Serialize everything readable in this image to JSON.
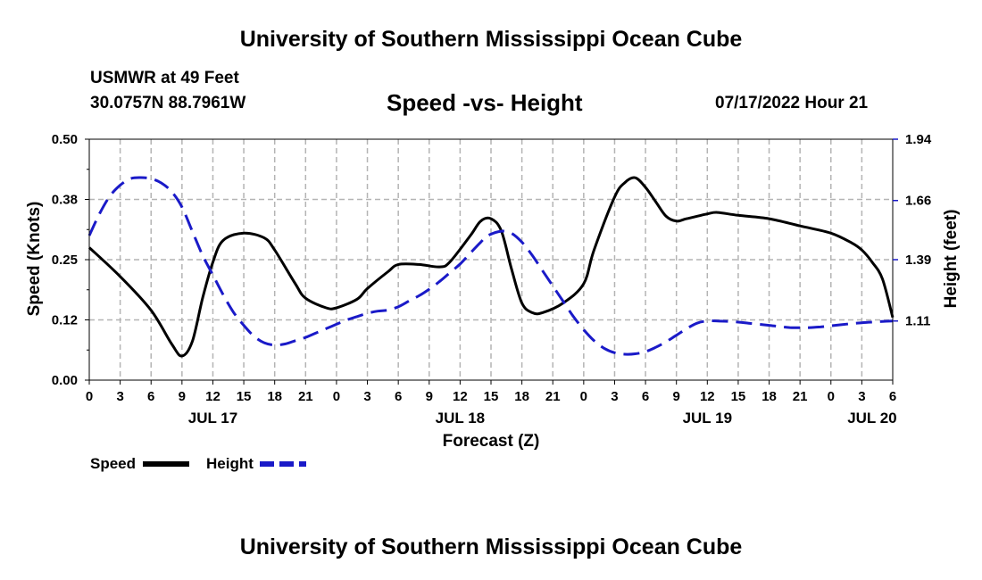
{
  "header": {
    "title": "University of Southern Mississippi Ocean Cube",
    "station": "USMWR at 49 Feet",
    "coords": "30.0757N  88.7961W",
    "subtitle": "Speed -vs- Height",
    "datetime": "07/17/2022 Hour 21"
  },
  "footer": {
    "title": "University of Southern Mississippi Ocean Cube"
  },
  "chart_data": {
    "type": "line",
    "title": "Speed -vs- Height",
    "xlabel": "Forecast (Z)",
    "ylabel": "Speed (Knots)",
    "y2label": "Height (feet)",
    "xlim": [
      0,
      78
    ],
    "ylim": [
      0,
      0.5
    ],
    "y2lim": [
      0.84,
      1.94
    ],
    "x_ticks": [
      0,
      3,
      6,
      9,
      12,
      15,
      18,
      21,
      24,
      27,
      30,
      33,
      36,
      39,
      42,
      45,
      48,
      51,
      54,
      57,
      60,
      63,
      66,
      69,
      72,
      75,
      78
    ],
    "x_tick_labels": [
      "0",
      "3",
      "6",
      "9",
      "12",
      "15",
      "18",
      "21",
      "0",
      "3",
      "6",
      "9",
      "12",
      "15",
      "18",
      "21",
      "0",
      "3",
      "6",
      "9",
      "12",
      "15",
      "18",
      "21",
      "0",
      "3",
      "6"
    ],
    "date_labels": [
      {
        "x": 12,
        "label": "JUL 17"
      },
      {
        "x": 36,
        "label": "JUL 18"
      },
      {
        "x": 60,
        "label": "JUL 19"
      },
      {
        "x": 76,
        "label": "JUL 20"
      }
    ],
    "y_ticks": [
      0.0,
      0.125,
      0.25,
      0.375,
      0.5
    ],
    "y_tick_labels": [
      "0.00",
      "0.12",
      "0.25",
      "0.38",
      "0.50"
    ],
    "y2_ticks": [
      1.11,
      1.39,
      1.66,
      1.94
    ],
    "y2_tick_labels": [
      "1.11",
      "1.39",
      "1.66",
      "1.94"
    ],
    "grid": true,
    "legend_position": "bottom-left",
    "series": [
      {
        "name": "Speed",
        "axis": "left",
        "color": "#000000",
        "dash": "solid",
        "points": [
          [
            0,
            0.275
          ],
          [
            3,
            0.215
          ],
          [
            6,
            0.145
          ],
          [
            8,
            0.075
          ],
          [
            9,
            0.05
          ],
          [
            10,
            0.08
          ],
          [
            11,
            0.17
          ],
          [
            12,
            0.245
          ],
          [
            13,
            0.29
          ],
          [
            15,
            0.305
          ],
          [
            17,
            0.295
          ],
          [
            18,
            0.27
          ],
          [
            20,
            0.2
          ],
          [
            21,
            0.17
          ],
          [
            23,
            0.15
          ],
          [
            24,
            0.15
          ],
          [
            26,
            0.168
          ],
          [
            27,
            0.19
          ],
          [
            29,
            0.225
          ],
          [
            30,
            0.24
          ],
          [
            32,
            0.24
          ],
          [
            34,
            0.235
          ],
          [
            35,
            0.245
          ],
          [
            37,
            0.3
          ],
          [
            38,
            0.33
          ],
          [
            39,
            0.335
          ],
          [
            40,
            0.31
          ],
          [
            41,
            0.23
          ],
          [
            42,
            0.16
          ],
          [
            43,
            0.14
          ],
          [
            44,
            0.14
          ],
          [
            46,
            0.16
          ],
          [
            48,
            0.2
          ],
          [
            49,
            0.27
          ],
          [
            51,
            0.38
          ],
          [
            52,
            0.41
          ],
          [
            53,
            0.42
          ],
          [
            54,
            0.4
          ],
          [
            55,
            0.37
          ],
          [
            56,
            0.34
          ],
          [
            57,
            0.33
          ],
          [
            58,
            0.335
          ],
          [
            60,
            0.345
          ],
          [
            61,
            0.348
          ],
          [
            63,
            0.342
          ],
          [
            66,
            0.335
          ],
          [
            69,
            0.32
          ],
          [
            72,
            0.305
          ],
          [
            74,
            0.285
          ],
          [
            75,
            0.27
          ],
          [
            76,
            0.245
          ],
          [
            77,
            0.21
          ],
          [
            78,
            0.13
          ]
        ]
      },
      {
        "name": "Height",
        "axis": "right",
        "color": "#1a1ac8",
        "dash": "dashed",
        "points": [
          [
            0,
            1.5
          ],
          [
            1,
            1.6
          ],
          [
            2,
            1.68
          ],
          [
            3,
            1.73
          ],
          [
            4,
            1.76
          ],
          [
            5,
            1.765
          ],
          [
            6,
            1.76
          ],
          [
            7,
            1.74
          ],
          [
            8,
            1.7
          ],
          [
            9,
            1.63
          ],
          [
            10,
            1.52
          ],
          [
            11,
            1.41
          ],
          [
            12,
            1.32
          ],
          [
            13,
            1.23
          ],
          [
            14,
            1.15
          ],
          [
            15,
            1.09
          ],
          [
            16,
            1.04
          ],
          [
            17,
            1.01
          ],
          [
            18,
            1.0
          ],
          [
            19,
            1.005
          ],
          [
            20,
            1.02
          ],
          [
            21,
            1.035
          ],
          [
            22,
            1.055
          ],
          [
            23,
            1.075
          ],
          [
            24,
            1.095
          ],
          [
            25,
            1.115
          ],
          [
            26,
            1.13
          ],
          [
            27,
            1.145
          ],
          [
            28,
            1.155
          ],
          [
            29,
            1.16
          ],
          [
            30,
            1.175
          ],
          [
            31,
            1.2
          ],
          [
            32,
            1.225
          ],
          [
            33,
            1.255
          ],
          [
            34,
            1.29
          ],
          [
            35,
            1.33
          ],
          [
            36,
            1.37
          ],
          [
            37,
            1.42
          ],
          [
            38,
            1.47
          ],
          [
            38.7,
            1.5
          ],
          [
            40,
            1.52
          ],
          [
            41,
            1.51
          ],
          [
            42,
            1.47
          ],
          [
            43,
            1.41
          ],
          [
            44,
            1.34
          ],
          [
            45,
            1.27
          ],
          [
            46,
            1.2
          ],
          [
            47,
            1.13
          ],
          [
            48,
            1.07
          ],
          [
            49,
            1.02
          ],
          [
            50,
            0.985
          ],
          [
            51,
            0.965
          ],
          [
            52,
            0.958
          ],
          [
            53,
            0.96
          ],
          [
            54,
            0.97
          ],
          [
            55,
            0.99
          ],
          [
            56,
            1.015
          ],
          [
            57,
            1.045
          ],
          [
            58,
            1.075
          ],
          [
            59,
            1.1
          ],
          [
            60,
            1.11
          ],
          [
            61,
            1.11
          ],
          [
            62,
            1.108
          ],
          [
            63,
            1.105
          ],
          [
            64,
            1.1
          ],
          [
            65,
            1.095
          ],
          [
            66,
            1.09
          ],
          [
            67,
            1.085
          ],
          [
            68,
            1.08
          ],
          [
            69,
            1.079
          ],
          [
            70,
            1.08
          ],
          [
            71,
            1.083
          ],
          [
            72,
            1.088
          ],
          [
            73,
            1.093
          ],
          [
            74,
            1.098
          ],
          [
            75,
            1.102
          ],
          [
            76,
            1.105
          ],
          [
            77,
            1.108
          ],
          [
            78,
            1.11
          ]
        ]
      }
    ]
  }
}
